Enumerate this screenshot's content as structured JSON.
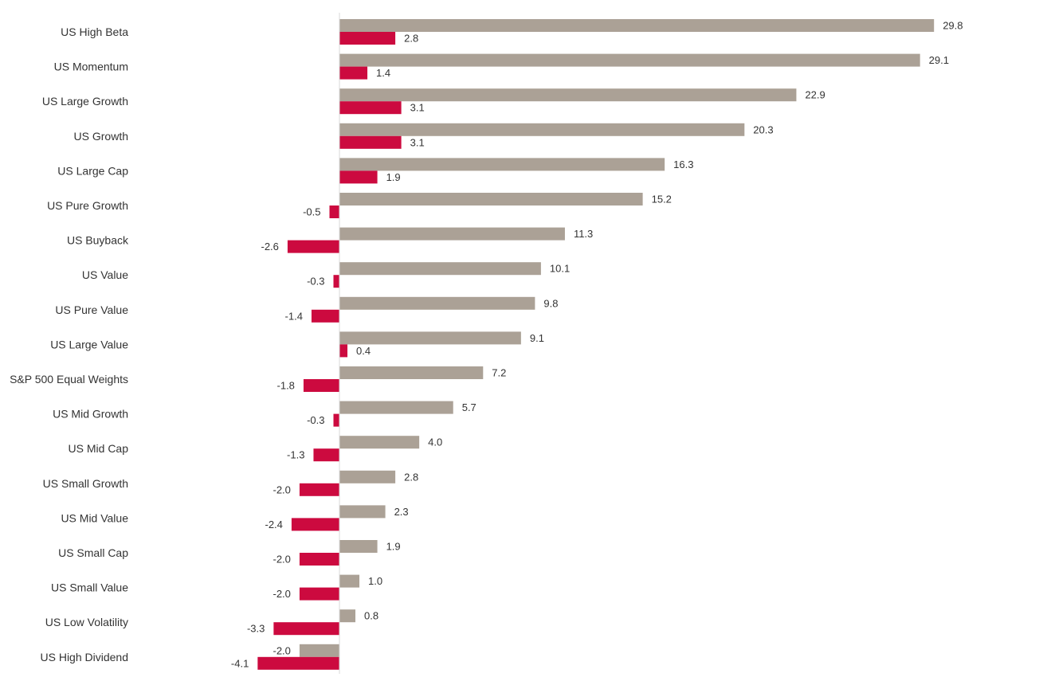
{
  "chart_data": {
    "type": "bar",
    "orientation": "horizontal",
    "categories": [
      "US High Beta",
      "US Momentum",
      "US Large Growth",
      "US Growth",
      "US Large Cap",
      "US Pure Growth",
      "US Buyback",
      "US Value",
      "US Pure Value",
      "US Large Value",
      "S&P 500 Equal Weights",
      "US Mid Growth",
      "US Mid Cap",
      "US Small Growth",
      "US Mid Value",
      "US Small Cap",
      "US Small Value",
      "US Low Volatility",
      "US High Dividend"
    ],
    "series": [
      {
        "color": "#aba196",
        "values": [
          29.8,
          29.1,
          22.9,
          20.3,
          16.3,
          15.2,
          11.3,
          10.1,
          9.8,
          9.1,
          7.2,
          5.7,
          4.0,
          2.8,
          2.3,
          1.9,
          1.0,
          0.8,
          -2.0
        ]
      },
      {
        "color": "#cc0a3f",
        "values": [
          2.8,
          1.4,
          3.1,
          3.1,
          1.9,
          -0.5,
          -2.6,
          -0.3,
          -1.4,
          0.4,
          -1.8,
          -0.3,
          -1.3,
          -2.0,
          -2.4,
          -2.0,
          -2.0,
          -3.3,
          -4.1
        ]
      }
    ],
    "value_labels": [
      [
        "29.8",
        "29.1",
        "22.9",
        "20.3",
        "16.3",
        "15.2",
        "11.3",
        "10.1",
        "9.8",
        "9.1",
        "7.2",
        "5.7",
        "4.0",
        "2.8",
        "2.3",
        "1.9",
        "1.0",
        "0.8",
        "-2.0"
      ],
      [
        "2.8",
        "1.4",
        "3.1",
        "3.1",
        "1.9",
        "-0.5",
        "-2.6",
        "-0.3",
        "-1.4",
        "0.4",
        "-1.8",
        "-0.3",
        "-1.3",
        "-2.0",
        "-2.4",
        "-2.0",
        "-2.0",
        "-3.3",
        "-4.1"
      ]
    ],
    "xlim": [
      -4.4,
      34
    ],
    "zero_line": true,
    "grid": false,
    "legend": "none",
    "title": "",
    "xlabel": "",
    "ylabel": ""
  }
}
